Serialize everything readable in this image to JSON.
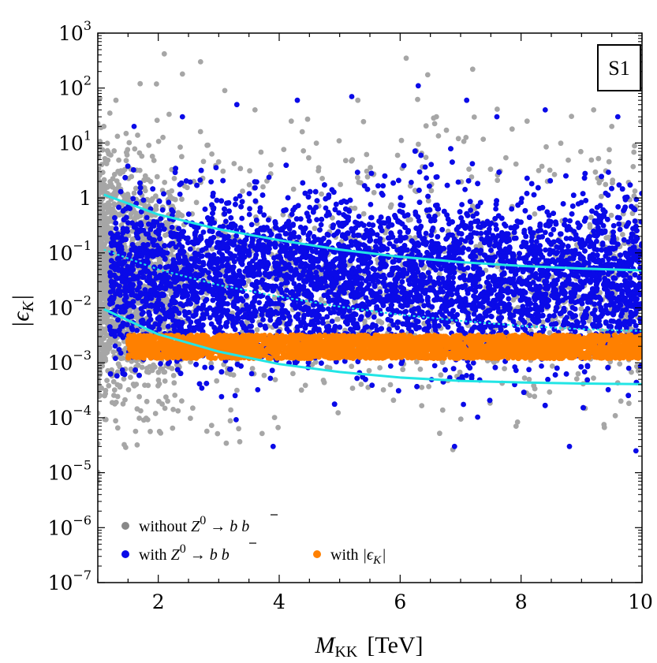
{
  "chart_data": {
    "type": "scatter",
    "title": "",
    "xlabel": "M_KK [TeV]",
    "xlabel_main": "M",
    "xlabel_sub": "KK",
    "xlabel_unit": "[TeV]",
    "ylabel": "|ε_K|",
    "ylabel_main": "|ϵ",
    "ylabel_sub": "K",
    "ylabel_close": "|",
    "xlim": [
      1,
      10
    ],
    "ylim": [
      1e-07,
      1000
    ],
    "yscale": "log",
    "grid": false,
    "badge": "S1",
    "legend_position": "bottom-left",
    "x_ticks": [
      {
        "value": 2,
        "label": "2"
      },
      {
        "value": 4,
        "label": "4"
      },
      {
        "value": 6,
        "label": "6"
      },
      {
        "value": 8,
        "label": "8"
      },
      {
        "value": 10,
        "label": "10"
      }
    ],
    "y_ticks": [
      {
        "value": 1000,
        "base": "10",
        "exp": "3"
      },
      {
        "value": 100,
        "base": "10",
        "exp": "2"
      },
      {
        "value": 10,
        "base": "10",
        "exp": "1"
      },
      {
        "value": 1,
        "base": "1",
        "exp": ""
      },
      {
        "value": 0.1,
        "base": "10",
        "exp": "−1"
      },
      {
        "value": 0.01,
        "base": "10",
        "exp": "−2"
      },
      {
        "value": 0.001,
        "base": "10",
        "exp": "−3"
      },
      {
        "value": 0.0001,
        "base": "10",
        "exp": "−4"
      },
      {
        "value": 1e-05,
        "base": "10",
        "exp": "−5"
      },
      {
        "value": 1e-06,
        "base": "10",
        "exp": "−6"
      },
      {
        "value": 1e-07,
        "base": "10",
        "exp": "−7"
      }
    ],
    "series": [
      {
        "name": "without Z0 → b b̄",
        "legend_parts": [
          "without ",
          "Z",
          "0",
          " → ",
          "b",
          "b"
        ],
        "color": "#a6a6a6",
        "region": {
          "x": [
            1.0,
            10.0
          ],
          "log10_y_center": -1.5,
          "log10_y_sigma": 1.05,
          "density": "highest at M_KK < 1.5 TeV"
        },
        "outliers": [
          {
            "x": 1.1,
            "y": 20
          },
          {
            "x": 1.2,
            "y": 35
          },
          {
            "x": 1.3,
            "y": 60
          },
          {
            "x": 1.7,
            "y": 120
          },
          {
            "x": 2.1,
            "y": 420
          },
          {
            "x": 2.4,
            "y": 180
          },
          {
            "x": 2.7,
            "y": 300
          },
          {
            "x": 3.1,
            "y": 90
          },
          {
            "x": 3.6,
            "y": 40
          },
          {
            "x": 4.2,
            "y": 25
          },
          {
            "x": 5.3,
            "y": 60
          },
          {
            "x": 6.1,
            "y": 350
          },
          {
            "x": 6.6,
            "y": 30
          },
          {
            "x": 7.2,
            "y": 220
          },
          {
            "x": 8.1,
            "y": 25
          },
          {
            "x": 9.2,
            "y": 40
          },
          {
            "x": 9.5,
            "y": 20
          }
        ]
      },
      {
        "name": "with Z0 → b b̄",
        "legend_parts": [
          "with ",
          "Z",
          "0",
          " → ",
          "b",
          "b"
        ],
        "color": "#0a0ae8",
        "region": {
          "x": [
            1.2,
            10.0
          ],
          "log10_y_center": -1.5,
          "log10_y_sigma": 0.75
        },
        "outliers": [
          {
            "x": 1.6,
            "y": 20
          },
          {
            "x": 2.4,
            "y": 30
          },
          {
            "x": 3.3,
            "y": 50
          },
          {
            "x": 4.3,
            "y": 60
          },
          {
            "x": 5.2,
            "y": 70
          },
          {
            "x": 6.3,
            "y": 110
          },
          {
            "x": 7.1,
            "y": 60
          },
          {
            "x": 7.6,
            "y": 30
          },
          {
            "x": 8.4,
            "y": 40
          },
          {
            "x": 9.6,
            "y": 30
          },
          {
            "x": 3.9,
            "y": 3e-05
          },
          {
            "x": 6.9,
            "y": 3e-05
          },
          {
            "x": 8.8,
            "y": 3e-05
          },
          {
            "x": 9.9,
            "y": 2.5e-05
          }
        ]
      },
      {
        "name": "with |ε_K|",
        "legend_parts": [
          "with ",
          "|ϵ",
          "K",
          "|"
        ],
        "color": "#ff8000",
        "region": {
          "x": [
            1.5,
            10.0
          ],
          "y": [
            0.0012,
            0.0032
          ]
        }
      }
    ],
    "curves": [
      {
        "style": "solid",
        "color": "#22e5e5",
        "x": [
          1.1,
          2,
          3,
          4,
          5,
          6,
          7,
          8,
          9,
          10
        ],
        "y": [
          1.15,
          0.5,
          0.27,
          0.17,
          0.115,
          0.085,
          0.068,
          0.058,
          0.052,
          0.048
        ]
      },
      {
        "style": "dotted",
        "color": "#22e5e5",
        "x": [
          1.1,
          2,
          3,
          4,
          5,
          6,
          7,
          8,
          9,
          10
        ],
        "y": [
          0.115,
          0.05,
          0.026,
          0.016,
          0.0105,
          0.0075,
          0.0058,
          0.0047,
          0.0041,
          0.0038
        ]
      },
      {
        "style": "solid",
        "color": "#22e5e5",
        "x": [
          1.1,
          2,
          3,
          4,
          5,
          6,
          7,
          8,
          9,
          10
        ],
        "y": [
          0.0095,
          0.0033,
          0.0016,
          0.00095,
          0.00068,
          0.00054,
          0.00047,
          0.00044,
          0.00042,
          0.00041
        ]
      }
    ]
  }
}
